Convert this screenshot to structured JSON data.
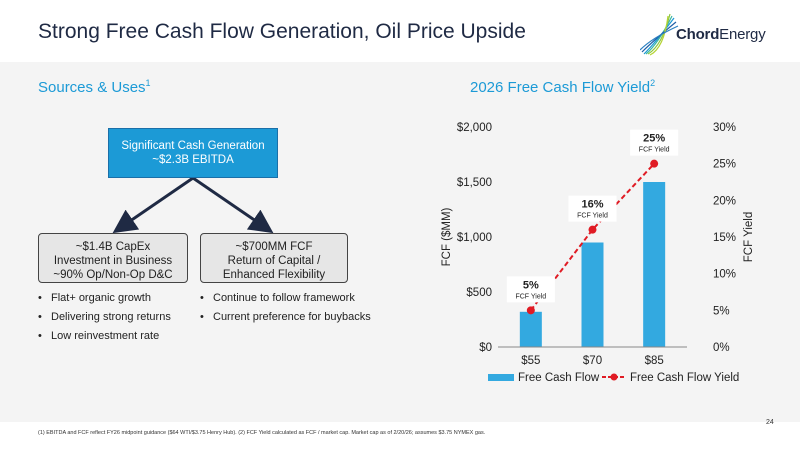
{
  "header": {
    "title": "Strong Free Cash Flow Generation, Oil Price Upside",
    "logo_text_bold": "Chord",
    "logo_text_light": "Energy"
  },
  "sources_uses": {
    "title": "Sources & Uses",
    "title_sup": "1",
    "top_box": [
      "Significant Cash Generation",
      "~$2.3B EBITDA"
    ],
    "left_box": [
      "~$1.4B CapEx",
      "Investment in Business",
      "~90% Op/Non-Op D&C"
    ],
    "right_box": [
      "~$700MM FCF",
      "Return of Capital /",
      "Enhanced Flexibility"
    ],
    "left_bullets": [
      "Flat+ organic growth",
      "Delivering strong returns",
      "Low reinvestment rate"
    ],
    "right_bullets": [
      "Continue to follow framework",
      "Current preference for buybacks"
    ]
  },
  "chart_section": {
    "title": "2026 Free Cash Flow Yield",
    "title_sup": "2"
  },
  "chart_data": {
    "type": "bar",
    "categories": [
      "$55",
      "$70",
      "$85"
    ],
    "series": [
      {
        "name": "Free Cash Flow",
        "type": "bar",
        "axis": "left",
        "values": [
          320,
          950,
          1500
        ],
        "color": "#33a9e0"
      },
      {
        "name": "Free Cash Flow Yield",
        "type": "line",
        "axis": "right",
        "values": [
          5,
          16,
          25
        ],
        "color": "#e01b24"
      }
    ],
    "ylabel": "FCF ($MM)",
    "y2label": "FCF Yield",
    "ylim": [
      0,
      2000
    ],
    "y2lim": [
      0,
      30
    ],
    "yticks": [
      "$0",
      "$500",
      "$1,000",
      "$1,500",
      "$2,000"
    ],
    "y2ticks": [
      "0%",
      "5%",
      "10%",
      "15%",
      "20%",
      "25%",
      "30%"
    ],
    "data_labels": [
      {
        "value": "5%",
        "sub": "FCF Yield"
      },
      {
        "value": "16%",
        "sub": "FCF Yield"
      },
      {
        "value": "25%",
        "sub": "FCF Yield"
      }
    ],
    "legend_position": "bottom",
    "grid": false
  },
  "footnote": "(1) EBITDA and FCF reflect FY26 midpoint guidance ($64 WTI/$3.75 Henry Hub). (2) FCF Yield calculated as FCF / market cap. Market cap as of 2/20/26; assumes $3.75 NYMEX gas.",
  "page_number": "24",
  "colors": {
    "accent": "#1c9ad6",
    "bar": "#33a9e0",
    "line": "#e01b24",
    "arrow": "#1f2a44"
  }
}
